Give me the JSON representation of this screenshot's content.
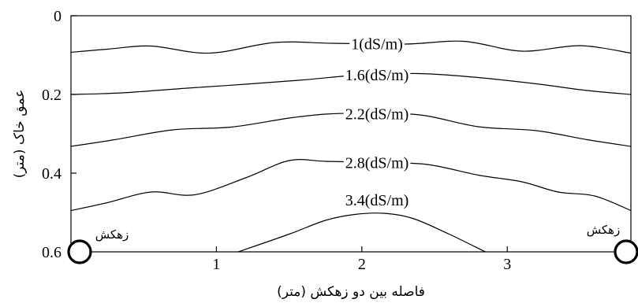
{
  "chart_data": {
    "type": "line",
    "subtype": "contour",
    "xlabel": "فاصله بین دو زهکش (متر)",
    "ylabel": "عمق خاک (متر)",
    "xlim": [
      0,
      3.85
    ],
    "ylim": [
      0.6,
      0
    ],
    "x_ticks": [
      "1",
      "2",
      "3"
    ],
    "y_ticks": [
      "0",
      "0.2",
      "0.4",
      "0.6"
    ],
    "grid": false,
    "drain_labels": [
      "زهکش",
      "زهکش"
    ],
    "series": [
      {
        "name": "1(dS/m)",
        "x": [
          0.0,
          0.25,
          0.55,
          0.95,
          1.4,
          1.8,
          2.3,
          2.7,
          3.1,
          3.5,
          3.85
        ],
        "y": [
          0.093,
          0.085,
          0.077,
          0.095,
          0.068,
          0.07,
          0.072,
          0.065,
          0.09,
          0.076,
          0.095
        ]
      },
      {
        "name": "1.6(dS/m)",
        "x": [
          0.0,
          0.35,
          0.8,
          1.2,
          1.6,
          2.0,
          2.4,
          2.8,
          3.2,
          3.55,
          3.85
        ],
        "y": [
          0.2,
          0.196,
          0.184,
          0.174,
          0.163,
          0.15,
          0.147,
          0.157,
          0.173,
          0.19,
          0.2
        ]
      },
      {
        "name": "2.2(dS/m)",
        "x": [
          0.0,
          0.3,
          0.7,
          1.1,
          1.5,
          1.75,
          2.0,
          2.4,
          2.8,
          3.2,
          3.55,
          3.85
        ],
        "y": [
          0.332,
          0.315,
          0.29,
          0.283,
          0.26,
          0.25,
          0.248,
          0.252,
          0.282,
          0.292,
          0.315,
          0.332
        ]
      },
      {
        "name": "2.8(dS/m)",
        "x": [
          0.0,
          0.25,
          0.55,
          0.85,
          1.2,
          1.5,
          1.75,
          2.1,
          2.45,
          2.8,
          3.1,
          3.35,
          3.6,
          3.85
        ],
        "y": [
          0.495,
          0.475,
          0.448,
          0.455,
          0.412,
          0.368,
          0.37,
          0.373,
          0.378,
          0.405,
          0.422,
          0.448,
          0.458,
          0.495
        ]
      },
      {
        "name": "3.4(dS/m)",
        "x": [
          1.15,
          1.5,
          1.75,
          1.95,
          2.15,
          2.35,
          2.6,
          2.85
        ],
        "y": [
          0.6,
          0.555,
          0.52,
          0.505,
          0.502,
          0.515,
          0.555,
          0.6
        ]
      }
    ]
  }
}
